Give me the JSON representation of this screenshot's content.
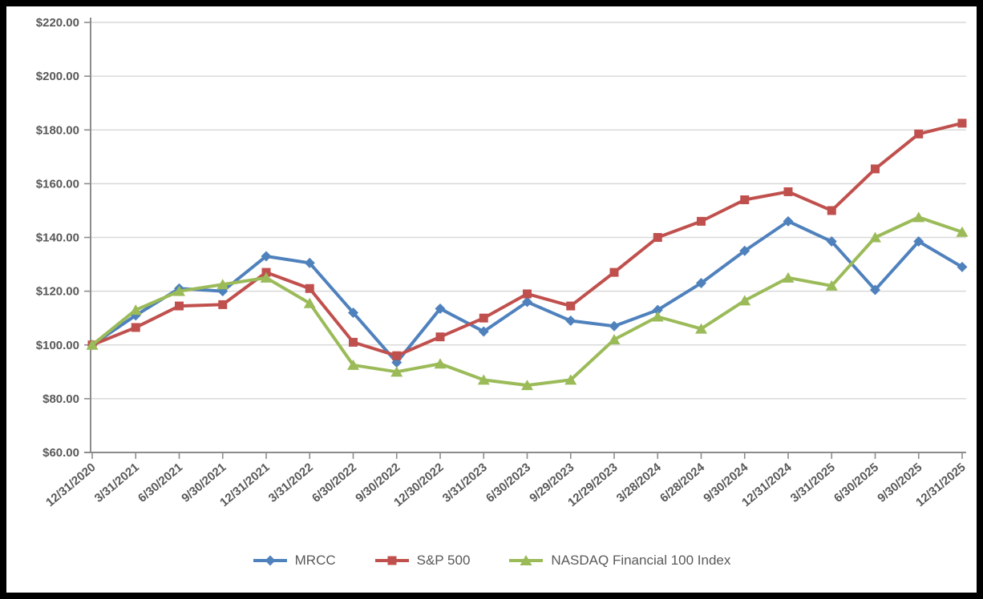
{
  "chart_data": {
    "type": "line",
    "title": "",
    "xlabel": "",
    "ylabel": "",
    "grid": true,
    "legend_position": "bottom",
    "categories": [
      "12/31/2020",
      "3/31/2021",
      "6/30/2021",
      "9/30/2021",
      "12/31/2021",
      "3/31/2022",
      "6/30/2022",
      "9/30/2022",
      "12/30/2022",
      "3/31/2023",
      "6/30/2023",
      "9/29/2023",
      "12/29/2023",
      "3/28/2024",
      "6/28/2024",
      "9/30/2024",
      "12/31/2024",
      "3/31/2025",
      "6/30/2025",
      "9/30/2025",
      "12/31/2025"
    ],
    "series": [
      {
        "name": "MRCC",
        "marker": "diamond",
        "color": "#4F81BD",
        "values": [
          100,
          111,
          121,
          120,
          133,
          130.5,
          112,
          93.5,
          113.5,
          105,
          116,
          109,
          107,
          113,
          123,
          135,
          146,
          138.5,
          120.5,
          138.5,
          129
        ]
      },
      {
        "name": "S&P 500",
        "marker": "square",
        "color": "#C0504D",
        "values": [
          100,
          106.5,
          114.5,
          115,
          127,
          121,
          101,
          96,
          103,
          110,
          119,
          114.5,
          127,
          140,
          146,
          154,
          157,
          150,
          165.5,
          178.5,
          182.5
        ]
      },
      {
        "name": "NASDAQ Financial 100 Index",
        "marker": "triangle",
        "color": "#9BBB59",
        "values": [
          100,
          113,
          120,
          122.5,
          125,
          115.5,
          92.5,
          90,
          93,
          87,
          85,
          87,
          102,
          110.5,
          106,
          116.5,
          125,
          122,
          140,
          147.5,
          142
        ]
      }
    ],
    "ylim": [
      60,
      220
    ],
    "y_step": 20,
    "y_tick_labels": [
      "$60.00",
      "$80.00",
      "$100.00",
      "$120.00",
      "$140.00",
      "$160.00",
      "$180.00",
      "$200.00",
      "$220.00"
    ],
    "colors": {
      "grid": "#D9D9D9",
      "axis": "#8C8C8C",
      "text": "#595959",
      "background": "#FFFFFF",
      "page_border": "#000000"
    }
  }
}
